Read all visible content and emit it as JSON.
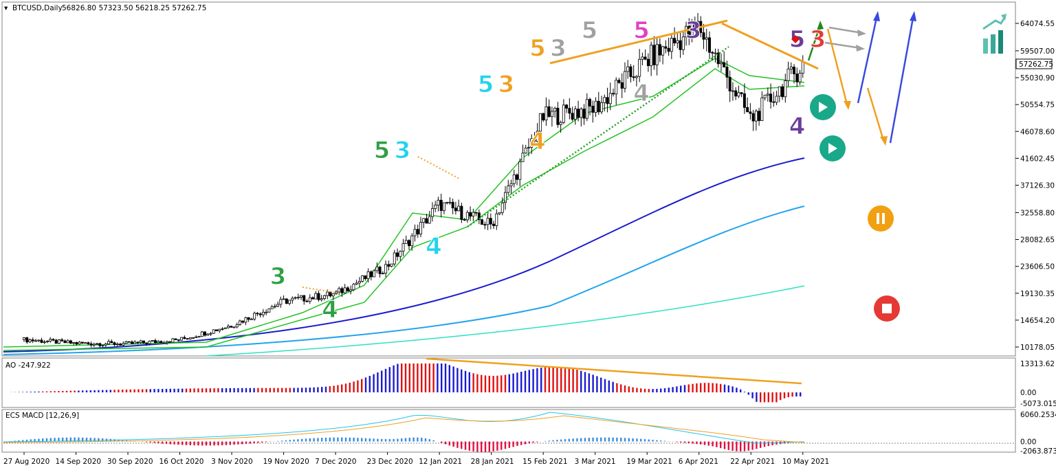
{
  "header": {
    "symbol": "BTCUSD,Daily",
    "ohlc": "56826.80 57323.50 56218.25 57262.75",
    "current_price": "57262.75"
  },
  "chart_data": [
    {
      "type": "candlestick",
      "title": "BTCUSD,Daily",
      "y_ticks": [
        "64074.55",
        "59507.00",
        "55030.90",
        "50554.75",
        "46078.60",
        "41602.45",
        "37126.30",
        "32558.80",
        "28082.65",
        "23606.50",
        "19130.35",
        "14654.20",
        "10178.05"
      ],
      "ylim": [
        10178.05,
        64074.55
      ],
      "x_ticks": [
        "27 Aug 2020",
        "14 Sep 2020",
        "30 Sep 2020",
        "16 Oct 2020",
        "3 Nov 2020",
        "19 Nov 2020",
        "7 Dec 2020",
        "23 Dec 2020",
        "12 Jan 2021",
        "28 Jan 2021",
        "15 Feb 2021",
        "3 Mar 2021",
        "19 Mar 2021",
        "6 Apr 2021",
        "22 Apr 2021",
        "10 May 2021"
      ],
      "close_path": [
        [
          "27 Aug 2020",
          11400
        ],
        [
          "14 Sep 2020",
          10800
        ],
        [
          "30 Sep 2020",
          10700
        ],
        [
          "16 Oct 2020",
          11400
        ],
        [
          "3 Nov 2020",
          13800
        ],
        [
          "19 Nov 2020",
          17800
        ],
        [
          "7 Dec 2020",
          19000
        ],
        [
          "23 Dec 2020",
          23700
        ],
        [
          "12 Jan 2021",
          34000
        ],
        [
          "28 Jan 2021",
          30500
        ],
        [
          "15 Feb 2021",
          48500
        ],
        [
          "3 Mar 2021",
          50000
        ],
        [
          "19 Mar 2021",
          58000
        ],
        [
          "6 Apr 2021",
          63500
        ],
        [
          "22 Apr 2021",
          48000
        ],
        [
          "10 May 2021",
          57262.75
        ]
      ],
      "wave_labels": [
        {
          "text": "3",
          "color": "#2ea043",
          "at": "19 Nov 2020",
          "price": 22000
        },
        {
          "text": "4",
          "color": "#2ea043",
          "at": "7 Dec 2020",
          "price": 16500
        },
        {
          "text": "5",
          "color": "#2ea043",
          "at": "23 Dec 2020",
          "price": 43000
        },
        {
          "text": "3",
          "color": "#22d3ee",
          "at": "23 Dec 2020",
          "price": 43000
        },
        {
          "text": "4",
          "color": "#22d3ee",
          "at": "12 Jan 2021",
          "price": 27000
        },
        {
          "text": "5",
          "color": "#22d3ee",
          "at": "28 Jan 2021",
          "price": 54000
        },
        {
          "text": "3",
          "color": "#f0a020",
          "at": "28 Jan 2021",
          "price": 54000
        },
        {
          "text": "4",
          "color": "#f0a020",
          "at": "15 Feb 2021",
          "price": 44500
        },
        {
          "text": "5",
          "color": "#f0a020",
          "at": "15 Feb 2021",
          "price": 60000
        },
        {
          "text": "3",
          "color": "#a0a0a0",
          "at": "15 Feb 2021",
          "price": 60000
        },
        {
          "text": "4",
          "color": "#a0a0a0",
          "at": "19 Mar 2021",
          "price": 52500
        },
        {
          "text": "5",
          "color": "#a0a0a0",
          "at": "3 Mar 2021",
          "price": 63000
        },
        {
          "text": "5",
          "color": "#e040c0",
          "at": "19 Mar 2021",
          "price": 63000
        },
        {
          "text": "3",
          "color": "#6a3d9a",
          "at": "6 Apr 2021",
          "price": 63000
        },
        {
          "text": "4",
          "color": "#6a3d9a",
          "at": "10 May 2021",
          "price": 47000
        },
        {
          "text": "5",
          "color": "#6a3d9a",
          "at": "10 May 2021",
          "price": 61500
        },
        {
          "text": "3",
          "color": "#e53935",
          "at": "10 May 2021",
          "price": 61500
        }
      ]
    },
    {
      "type": "bar",
      "title": "AO -247.922",
      "y_ticks": [
        "13313.62",
        "0.00",
        "-5073.015"
      ],
      "ylim": [
        -5073.015,
        13313.62
      ]
    },
    {
      "type": "bar",
      "title": "ECS MACD [12,26,9]",
      "y_ticks": [
        "6060.2534",
        "0.00",
        "-2063.8738"
      ],
      "ylim": [
        -2063.8738,
        6060.2534
      ]
    }
  ],
  "colors": {
    "bull": "#2ea043",
    "bear": "#e53935",
    "ma_blue": "#1a1ad0",
    "ma_light": "#22a3ee",
    "ma_cyan": "#2ee0c0",
    "trend": "#f0a020",
    "play": "#1aa88a",
    "pause": "#f0a010",
    "stop": "#e53935"
  },
  "icons": [
    "play-icon",
    "play-icon",
    "pause-icon",
    "stop-icon",
    "bullish-chart-icon"
  ]
}
